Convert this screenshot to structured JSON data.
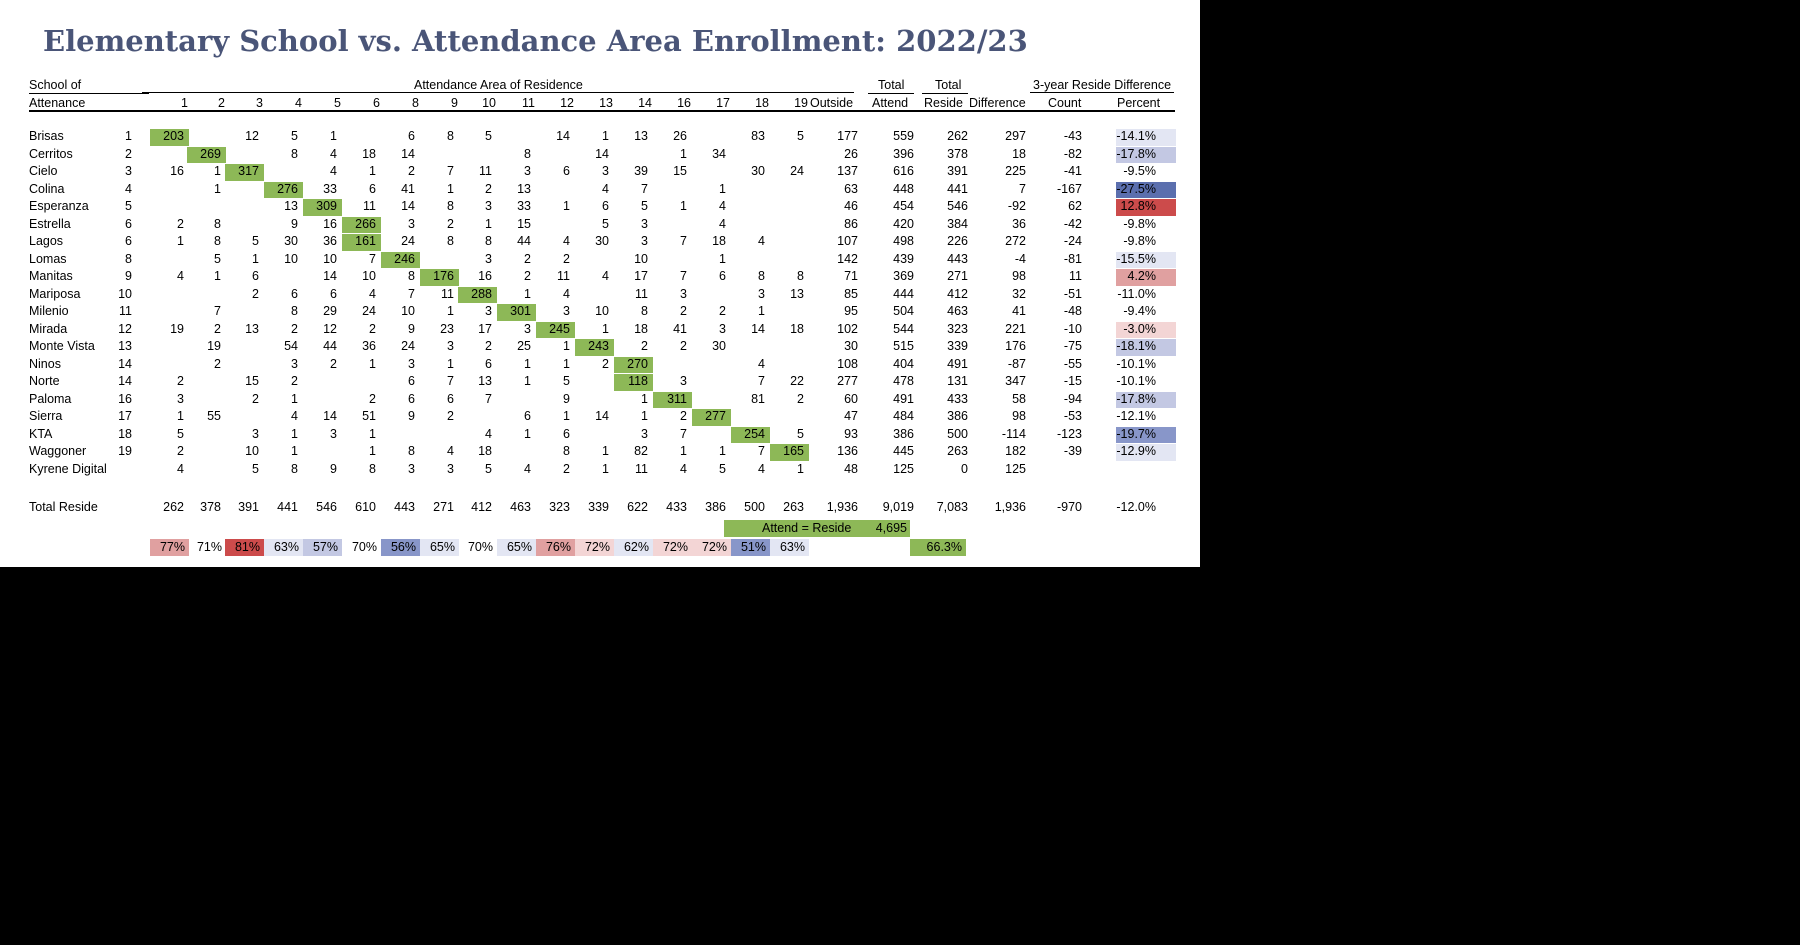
{
  "title": "Elementary School vs. Attendance Area Enrollment: 2022/23",
  "colors": {
    "diag": "#8db857",
    "title": "#4a5578",
    "neg_light": "#e3e6f3",
    "neg_mid": "#c3c8e3",
    "neg_strong": "#8896c9",
    "neg_darkest": "#5b6fae",
    "pos_light": "#f3d5d5",
    "pos_mid": "#e0a0a0",
    "pos_strong": "#cc4b4b"
  },
  "headers": {
    "school_line1": "School of",
    "school_line2": "Attenance",
    "area_group": "Attendance Area of Residence",
    "columns": [
      "1",
      "2",
      "3",
      "4",
      "5",
      "6",
      "8",
      "9",
      "10",
      "11",
      "12",
      "13",
      "14",
      "16",
      "17",
      "18",
      "19"
    ],
    "outside": "Outside",
    "total_attend_1": "Total",
    "total_attend_2": "Attend",
    "total_reside_1": "Total",
    "total_reside_2": "Reside",
    "difference": "Difference",
    "three_year_group": "3-year Reside Difference",
    "count": "Count",
    "percent": "Percent"
  },
  "rows": [
    {
      "school": "Brisas",
      "area": "1",
      "cells": {
        "1": "203",
        "3": "12",
        "4": "5",
        "5": "1",
        "8": "6",
        "9": "8",
        "10": "5",
        "12": "14",
        "13": "1",
        "14": "13",
        "16": "26",
        "18": "83",
        "19": "5"
      },
      "outside": "177",
      "attend": "559",
      "reside": "262",
      "difference": "297",
      "count": "-43",
      "percent": "-14.1%",
      "pct_shade": "neg_light"
    },
    {
      "school": "Cerritos",
      "area": "2",
      "cells": {
        "2": "269",
        "4": "8",
        "5": "4",
        "6": "18",
        "8": "14",
        "11": "8",
        "13": "14",
        "16": "1",
        "17": "34"
      },
      "outside": "26",
      "attend": "396",
      "reside": "378",
      "difference": "18",
      "count": "-82",
      "percent": "-17.8%",
      "pct_shade": "neg_mid"
    },
    {
      "school": "Cielo",
      "area": "3",
      "cells": {
        "1": "16",
        "2": "1",
        "3": "317",
        "5": "4",
        "6": "1",
        "8": "2",
        "9": "7",
        "10": "11",
        "11": "3",
        "12": "6",
        "13": "3",
        "14": "39",
        "16": "15",
        "18": "30",
        "19": "24"
      },
      "outside": "137",
      "attend": "616",
      "reside": "391",
      "difference": "225",
      "count": "-41",
      "percent": "-9.5%",
      "pct_shade": ""
    },
    {
      "school": "Colina",
      "area": "4",
      "cells": {
        "2": "1",
        "4": "276",
        "5": "33",
        "6": "6",
        "8": "41",
        "9": "1",
        "10": "2",
        "11": "13",
        "13": "4",
        "14": "7",
        "17": "1"
      },
      "outside": "63",
      "attend": "448",
      "reside": "441",
      "difference": "7",
      "count": "-167",
      "percent": "-27.5%",
      "pct_shade": "neg_darkest"
    },
    {
      "school": "Esperanza",
      "area": "5",
      "cells": {
        "4": "13",
        "5": "309",
        "6": "11",
        "8": "14",
        "9": "8",
        "10": "3",
        "11": "33",
        "12": "1",
        "13": "6",
        "14": "5",
        "16": "1",
        "17": "4"
      },
      "outside": "46",
      "attend": "454",
      "reside": "546",
      "difference": "-92",
      "count": "62",
      "percent": "12.8%",
      "pct_shade": "pos_strong"
    },
    {
      "school": "Estrella",
      "area": "6",
      "cells": {
        "1": "2",
        "2": "8",
        "4": "9",
        "5": "16",
        "6": "266",
        "8": "3",
        "9": "2",
        "10": "1",
        "11": "15",
        "13": "5",
        "14": "3",
        "17": "4"
      },
      "outside": "86",
      "attend": "420",
      "reside": "384",
      "difference": "36",
      "count": "-42",
      "percent": "-9.8%",
      "pct_shade": ""
    },
    {
      "school": "Lagos",
      "area": "6",
      "cells": {
        "1": "1",
        "2": "8",
        "3": "5",
        "4": "30",
        "5": "36",
        "6": "161",
        "8": "24",
        "9": "8",
        "10": "8",
        "11": "44",
        "12": "4",
        "13": "30",
        "14": "3",
        "16": "7",
        "17": "18",
        "18": "4"
      },
      "outside": "107",
      "attend": "498",
      "reside": "226",
      "difference": "272",
      "count": "-24",
      "percent": "-9.8%",
      "pct_shade": ""
    },
    {
      "school": "Lomas",
      "area": "8",
      "cells": {
        "2": "5",
        "3": "1",
        "4": "10",
        "5": "10",
        "6": "7",
        "8": "246",
        "10": "3",
        "11": "2",
        "12": "2",
        "14": "10",
        "17": "1"
      },
      "outside": "142",
      "attend": "439",
      "reside": "443",
      "difference": "-4",
      "count": "-81",
      "percent": "-15.5%",
      "pct_shade": "neg_light"
    },
    {
      "school": "Manitas",
      "area": "9",
      "cells": {
        "1": "4",
        "2": "1",
        "3": "6",
        "5": "14",
        "6": "10",
        "8": "8",
        "9": "176",
        "10": "16",
        "11": "2",
        "12": "11",
        "13": "4",
        "14": "17",
        "16": "7",
        "17": "6",
        "18": "8",
        "19": "8"
      },
      "outside": "71",
      "attend": "369",
      "reside": "271",
      "difference": "98",
      "count": "11",
      "percent": "4.2%",
      "pct_shade": "pos_mid"
    },
    {
      "school": "Mariposa",
      "area": "10",
      "cells": {
        "3": "2",
        "4": "6",
        "5": "6",
        "6": "4",
        "8": "7",
        "9": "11",
        "10": "288",
        "11": "1",
        "12": "4",
        "14": "11",
        "16": "3",
        "18": "3",
        "19": "13"
      },
      "outside": "85",
      "attend": "444",
      "reside": "412",
      "difference": "32",
      "count": "-51",
      "percent": "-11.0%",
      "pct_shade": ""
    },
    {
      "school": "Milenio",
      "area": "11",
      "cells": {
        "2": "7",
        "4": "8",
        "5": "29",
        "6": "24",
        "8": "10",
        "9": "1",
        "10": "3",
        "11": "301",
        "12": "3",
        "13": "10",
        "14": "8",
        "16": "2",
        "17": "2",
        "18": "1"
      },
      "outside": "95",
      "attend": "504",
      "reside": "463",
      "difference": "41",
      "count": "-48",
      "percent": "-9.4%",
      "pct_shade": ""
    },
    {
      "school": "Mirada",
      "area": "12",
      "cells": {
        "1": "19",
        "2": "2",
        "3": "13",
        "4": "2",
        "5": "12",
        "6": "2",
        "8": "9",
        "9": "23",
        "10": "17",
        "11": "3",
        "12": "245",
        "13": "1",
        "14": "18",
        "16": "41",
        "17": "3",
        "18": "14",
        "19": "18"
      },
      "outside": "102",
      "attend": "544",
      "reside": "323",
      "difference": "221",
      "count": "-10",
      "percent": "-3.0%",
      "pct_shade": "pos_light"
    },
    {
      "school": "Monte Vista",
      "area": "13",
      "cells": {
        "2": "19",
        "4": "54",
        "5": "44",
        "6": "36",
        "8": "24",
        "9": "3",
        "10": "2",
        "11": "25",
        "12": "1",
        "13": "243",
        "14": "2",
        "16": "2",
        "17": "30"
      },
      "outside": "30",
      "attend": "515",
      "reside": "339",
      "difference": "176",
      "count": "-75",
      "percent": "-18.1%",
      "pct_shade": "neg_mid"
    },
    {
      "school": "Ninos",
      "area": "14",
      "cells": {
        "2": "2",
        "4": "3",
        "5": "2",
        "6": "1",
        "8": "3",
        "9": "1",
        "10": "6",
        "11": "1",
        "12": "1",
        "13": "2",
        "14": "270",
        "18": "4"
      },
      "outside": "108",
      "attend": "404",
      "reside": "491",
      "difference": "-87",
      "count": "-55",
      "percent": "-10.1%",
      "pct_shade": ""
    },
    {
      "school": "Norte",
      "area": "14",
      "cells": {
        "1": "2",
        "3": "15",
        "4": "2",
        "8": "6",
        "9": "7",
        "10": "13",
        "11": "1",
        "12": "5",
        "14": "118",
        "16": "3",
        "18": "7",
        "19": "22"
      },
      "outside": "277",
      "attend": "478",
      "reside": "131",
      "difference": "347",
      "count": "-15",
      "percent": "-10.1%",
      "pct_shade": ""
    },
    {
      "school": "Paloma",
      "area": "16",
      "cells": {
        "1": "3",
        "3": "2",
        "4": "1",
        "6": "2",
        "8": "6",
        "9": "6",
        "10": "7",
        "12": "9",
        "14": "1",
        "16": "311",
        "18": "81",
        "19": "2"
      },
      "outside": "60",
      "attend": "491",
      "reside": "433",
      "difference": "58",
      "count": "-94",
      "percent": "-17.8%",
      "pct_shade": "neg_mid"
    },
    {
      "school": "Sierra",
      "area": "17",
      "cells": {
        "1": "1",
        "2": "55",
        "4": "4",
        "5": "14",
        "6": "51",
        "8": "9",
        "9": "2",
        "11": "6",
        "12": "1",
        "13": "14",
        "14": "1",
        "16": "2",
        "17": "277"
      },
      "outside": "47",
      "attend": "484",
      "reside": "386",
      "difference": "98",
      "count": "-53",
      "percent": "-12.1%",
      "pct_shade": ""
    },
    {
      "school": "KTA",
      "area": "18",
      "cells": {
        "1": "5",
        "3": "3",
        "4": "1",
        "5": "3",
        "6": "1",
        "10": "4",
        "11": "1",
        "12": "6",
        "14": "3",
        "16": "7",
        "18": "254",
        "19": "5"
      },
      "outside": "93",
      "attend": "386",
      "reside": "500",
      "difference": "-114",
      "count": "-123",
      "percent": "-19.7%",
      "pct_shade": "neg_strong"
    },
    {
      "school": "Waggoner",
      "area": "19",
      "cells": {
        "1": "2",
        "3": "10",
        "4": "1",
        "6": "1",
        "8": "8",
        "9": "4",
        "10": "18",
        "12": "8",
        "13": "1",
        "14": "82",
        "16": "1",
        "17": "1",
        "18": "7",
        "19": "165"
      },
      "outside": "136",
      "attend": "445",
      "reside": "263",
      "difference": "182",
      "count": "-39",
      "percent": "-12.9%",
      "pct_shade": "neg_light"
    },
    {
      "school": "Kyrene Digital",
      "area": "",
      "cells": {
        "1": "4",
        "3": "5",
        "4": "8",
        "5": "9",
        "6": "8",
        "8": "3",
        "9": "3",
        "10": "5",
        "11": "4",
        "12": "2",
        "13": "1",
        "14": "11",
        "16": "4",
        "17": "5",
        "18": "4",
        "19": "1"
      },
      "outside": "48",
      "attend": "125",
      "reside": "0",
      "difference": "125",
      "count": "",
      "percent": "",
      "pct_shade": ""
    }
  ],
  "total_row": {
    "label": "Total Reside",
    "cells": [
      "262",
      "378",
      "391",
      "441",
      "546",
      "610",
      "443",
      "271",
      "412",
      "463",
      "323",
      "339",
      "622",
      "433",
      "386",
      "500",
      "263"
    ],
    "outside": "1,936",
    "attend": "9,019",
    "reside": "7,083",
    "difference": "1,936",
    "count": "-970",
    "percent": "-12.0%"
  },
  "attend_reside": {
    "label": "Attend = Reside",
    "value": "4,695"
  },
  "pct_row": {
    "values": [
      "77%",
      "71%",
      "81%",
      "63%",
      "57%",
      "70%",
      "56%",
      "65%",
      "70%",
      "65%",
      "76%",
      "72%",
      "62%",
      "72%",
      "72%",
      "51%",
      "63%"
    ],
    "shades": [
      "pos_mid",
      "",
      "pos_strong",
      "neg_light",
      "neg_mid",
      "",
      "neg_strong",
      "neg_light",
      "",
      "neg_light",
      "pos_mid",
      "pos_light",
      "neg_light",
      "pos_light",
      "pos_light",
      "neg_strong",
      "neg_light"
    ],
    "overall": "66.3%"
  }
}
